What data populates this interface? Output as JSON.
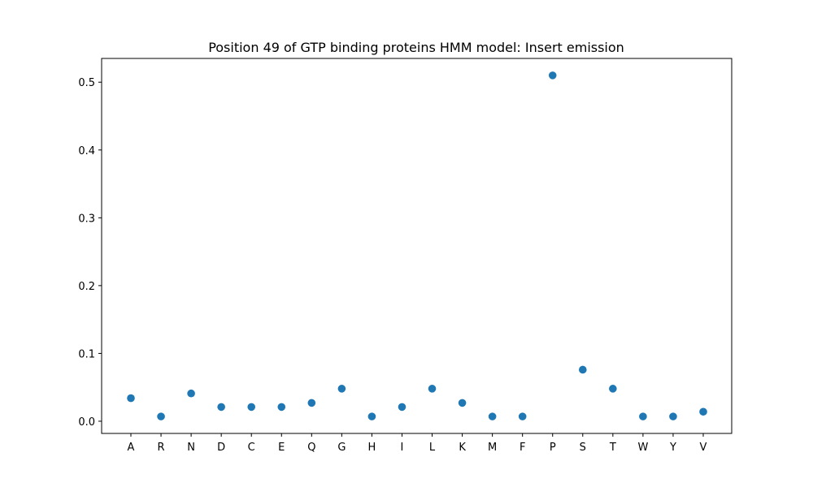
{
  "chart_data": {
    "type": "scatter",
    "title": "Position 49 of GTP binding proteins HMM model: Insert emission",
    "xlabel": "",
    "ylabel": "",
    "categories": [
      "A",
      "R",
      "N",
      "D",
      "C",
      "E",
      "Q",
      "G",
      "H",
      "I",
      "L",
      "K",
      "M",
      "F",
      "P",
      "S",
      "T",
      "W",
      "Y",
      "V"
    ],
    "values": [
      0.034,
      0.007,
      0.041,
      0.021,
      0.021,
      0.021,
      0.027,
      0.048,
      0.007,
      0.021,
      0.048,
      0.027,
      0.007,
      0.007,
      0.51,
      0.076,
      0.048,
      0.007,
      0.007,
      0.014
    ],
    "ylim": [
      -0.018,
      0.535
    ],
    "yticks": [
      0.0,
      0.1,
      0.2,
      0.3,
      0.4,
      0.5
    ],
    "ytick_labels": [
      "0.0",
      "0.1",
      "0.2",
      "0.3",
      "0.4",
      "0.5"
    ],
    "grid": false,
    "marker_color": "#1f77b4"
  }
}
